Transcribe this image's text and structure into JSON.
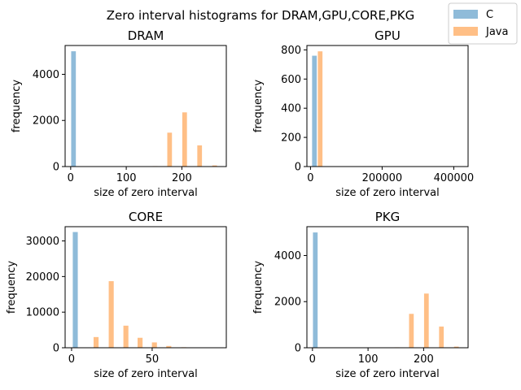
{
  "figure": {
    "title": "Zero interval histograms for DRAM,GPU,CORE,PKG"
  },
  "legend": {
    "placement": "top-right",
    "entries": [
      {
        "label": "C",
        "color": "#1f77b4",
        "alpha": 0.5
      },
      {
        "label": "Java",
        "color": "#ff7f0e",
        "alpha": 0.5
      }
    ]
  },
  "chart_data": [
    {
      "type": "bar",
      "title": "DRAM",
      "xlabel": "size of zero interval",
      "ylabel": "frequency",
      "xlim": [
        -10,
        280
      ],
      "ylim": [
        0,
        5250
      ],
      "xticks": [
        0,
        100,
        200
      ],
      "xtick_labels": [
        "0",
        "100",
        "200"
      ],
      "yticks": [
        0,
        2000,
        4000
      ],
      "ytick_labels": [
        "0",
        "2000",
        "4000"
      ],
      "bar_width": 8.4,
      "series": [
        {
          "name": "C",
          "x": [
            5.1
          ],
          "values": [
            5000
          ]
        },
        {
          "name": "Java",
          "x": [
            152,
            178,
            205,
            232,
            259
          ],
          "values": [
            20,
            1470,
            2350,
            920,
            50
          ]
        }
      ]
    },
    {
      "type": "bar",
      "title": "GPU",
      "xlabel": "size of zero interval",
      "ylabel": "frequency",
      "xlim": [
        -10000,
        440000
      ],
      "ylim": [
        0,
        830
      ],
      "xticks": [
        0,
        200000,
        400000
      ],
      "xtick_labels": [
        "0",
        "200000",
        "400000"
      ],
      "yticks": [
        0,
        200,
        400,
        600,
        800
      ],
      "ytick_labels": [
        "0",
        "200",
        "400",
        "600",
        "800"
      ],
      "bar_width": 13000,
      "series": [
        {
          "name": "C",
          "x": [
            11000
          ],
          "values": [
            760
          ]
        },
        {
          "name": "Java",
          "x": [
            27000
          ],
          "values": [
            790
          ]
        }
      ]
    },
    {
      "type": "bar",
      "title": "CORE",
      "xlabel": "size of zero interval",
      "ylabel": "frequency",
      "xlim": [
        -4,
        96
      ],
      "ylim": [
        0,
        34000
      ],
      "xticks": [
        0,
        50
      ],
      "xtick_labels": [
        "0",
        "50"
      ],
      "yticks": [
        0,
        10000,
        20000,
        30000
      ],
      "ytick_labels": [
        "0",
        "10000",
        "20000",
        "30000"
      ],
      "bar_width": 3.1,
      "series": [
        {
          "name": "C",
          "x": [
            2.3
          ],
          "values": [
            32500
          ]
        },
        {
          "name": "Java",
          "x": [
            15.2,
            24.6,
            33.7,
            42.5,
            51.4,
            60.3,
            69.6,
            78.5
          ],
          "values": [
            3000,
            18700,
            6200,
            2800,
            1500,
            500,
            150,
            50
          ]
        }
      ]
    },
    {
      "type": "bar",
      "title": "PKG",
      "xlabel": "size of zero interval",
      "ylabel": "frequency",
      "xlim": [
        -10,
        280
      ],
      "ylim": [
        0,
        5250
      ],
      "xticks": [
        0,
        100,
        200
      ],
      "xtick_labels": [
        "0",
        "100",
        "200"
      ],
      "yticks": [
        0,
        2000,
        4000
      ],
      "ytick_labels": [
        "0",
        "2000",
        "4000"
      ],
      "bar_width": 8.4,
      "series": [
        {
          "name": "C",
          "x": [
            5.1
          ],
          "values": [
            5000
          ]
        },
        {
          "name": "Java",
          "x": [
            152,
            178,
            205,
            232,
            259
          ],
          "values": [
            20,
            1470,
            2350,
            920,
            50
          ]
        }
      ]
    }
  ]
}
